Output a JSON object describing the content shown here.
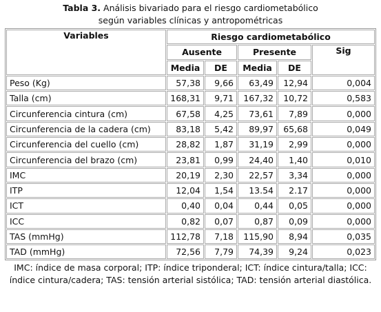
{
  "caption": {
    "label": "Tabla 3.",
    "line1": "Análisis bivariado para el riesgo cardiometabólico",
    "line2": "según variables clínicas y antropométricas"
  },
  "header": {
    "variables": "Variables",
    "group": "Riesgo cardiometabólico",
    "ausente": "Ausente",
    "presente": "Presente",
    "sig": "Sig",
    "subcolumns": [
      "Media",
      "DE",
      "Media",
      "DE"
    ]
  },
  "table": {
    "rows": [
      [
        "Peso (Kg)",
        "57,38",
        "9,66",
        "63,49",
        "12,94",
        "0,004"
      ],
      [
        "Talla (cm)",
        "168,31",
        "9,71",
        "167,32",
        "10,72",
        "0,583"
      ],
      [
        "Circunferencia cintura (cm)",
        "67,58",
        "4,25",
        "73,61",
        "7,89",
        "0,000"
      ],
      [
        "Circunferencia de la cadera (cm)",
        "83,18",
        "5,42",
        "89,97",
        "65,68",
        "0,049"
      ],
      [
        "Circunferencia del cuello (cm)",
        "28,82",
        "1,87",
        "31,19",
        "2,99",
        "0,000"
      ],
      [
        "Circunferencia del brazo (cm)",
        "23,81",
        "0,99",
        "24,40",
        "1,40",
        "0,010"
      ],
      [
        "IMC",
        "20,19",
        "2,30",
        "22,57",
        "3,34",
        "0,000"
      ],
      [
        "ITP",
        "12,04",
        "1,54",
        "13.54",
        "2.17",
        "0,000"
      ],
      [
        "ICT",
        "0,40",
        "0,04",
        "0,44",
        "0,05",
        "0,000"
      ],
      [
        "ICC",
        "0,82",
        "0,07",
        "0,87",
        "0,09",
        "0,000"
      ],
      [
        "TAS (mmHg)",
        "112,78",
        "7,18",
        "115,90",
        "8,94",
        "0,035"
      ],
      [
        "TAD (mmHg)",
        "72,56",
        "7,79",
        "74,39",
        "9,24",
        "0,023"
      ]
    ]
  },
  "note": "IMC: índice de masa corporal; ITP: índice triponderal; ICT: índice cintura/talla; ICC: índice cintura/cadera; TAS: tensión arterial sistólica; TAD: tensión arterial diastólica."
}
